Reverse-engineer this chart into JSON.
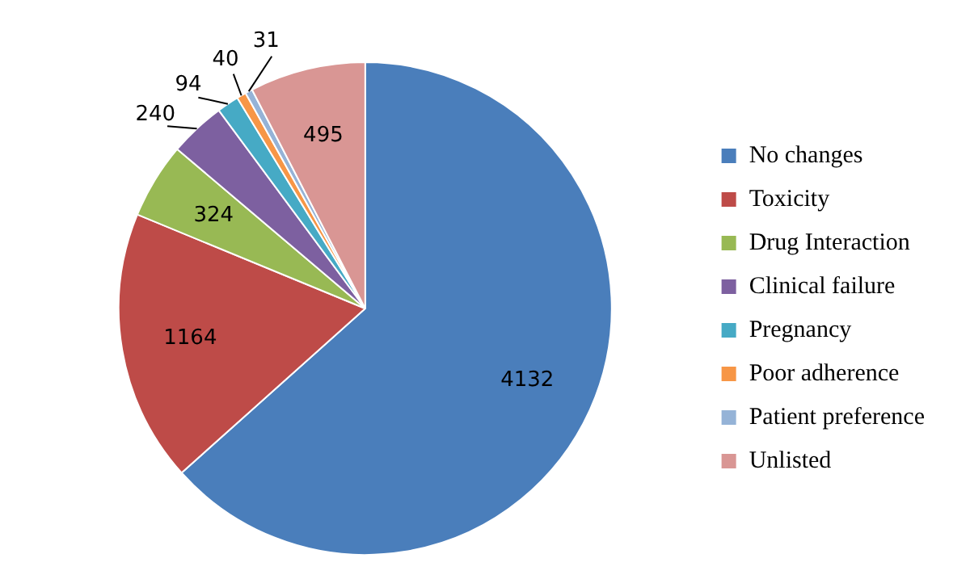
{
  "chart_data": {
    "type": "pie",
    "categories": [
      "No changes",
      "Toxicity",
      "Drug Interaction",
      "Clinical failure",
      "Pregnancy",
      "Poor adherence",
      "Patient preference",
      "Unlisted"
    ],
    "values": [
      4132,
      1164,
      324,
      240,
      94,
      40,
      31,
      495
    ],
    "colors": [
      "#4a7ebb",
      "#be4b48",
      "#98b954",
      "#7d60a0",
      "#46aac5",
      "#f79646",
      "#95b3d7",
      "#d99694"
    ],
    "data_labels": true,
    "legend": "right"
  }
}
